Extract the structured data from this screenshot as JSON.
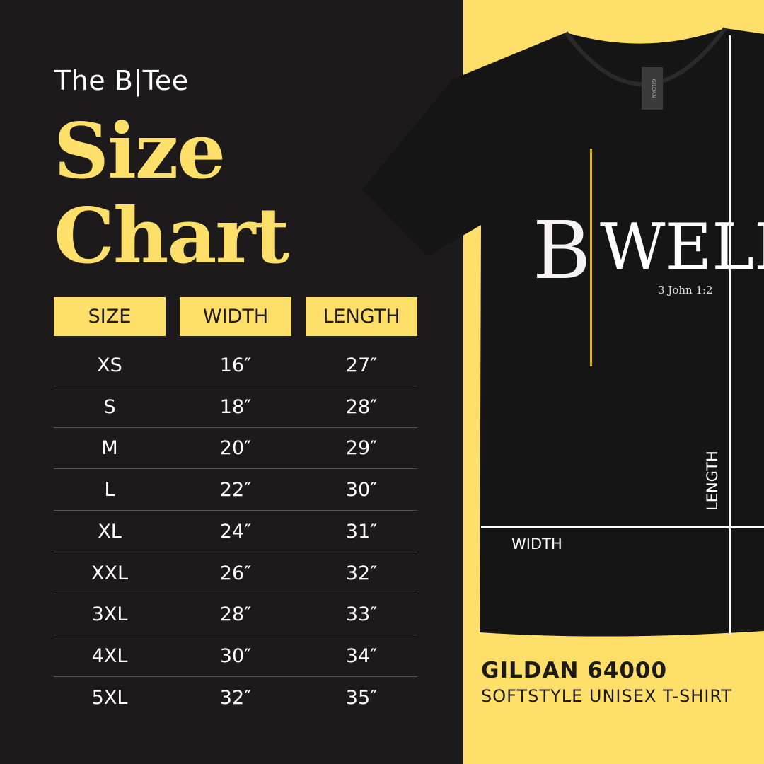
{
  "brand": "The B|Tee",
  "title": {
    "line1": "Size",
    "line2": "Chart"
  },
  "table": {
    "headers": [
      "SIZE",
      "WIDTH",
      "LENGTH"
    ],
    "rows": [
      [
        "XS",
        "16″",
        "27″"
      ],
      [
        "S",
        "18″",
        "28″"
      ],
      [
        "M",
        "20″",
        "29″"
      ],
      [
        "L",
        "22″",
        "30″"
      ],
      [
        "XL",
        "24″",
        "31″"
      ],
      [
        "XXL",
        "26″",
        "32″"
      ],
      [
        "3XL",
        "28″",
        "33″"
      ],
      [
        "4XL",
        "30″",
        "34″"
      ],
      [
        "5XL",
        "32″",
        "35″"
      ]
    ]
  },
  "shirt": {
    "print_b": "B",
    "print_word": "WELL",
    "print_verse": "3 John 1:2",
    "tag": "GILDAN",
    "length_label": "LENGTH",
    "width_label": "WIDTH"
  },
  "product": {
    "model": "GILDAN 64000",
    "description": "SOFTSTYLE UNISEX T-SHIRT"
  },
  "colors": {
    "background": "#1c1a1b",
    "accent": "#fedf6a",
    "print_bar": "#e0b400"
  }
}
